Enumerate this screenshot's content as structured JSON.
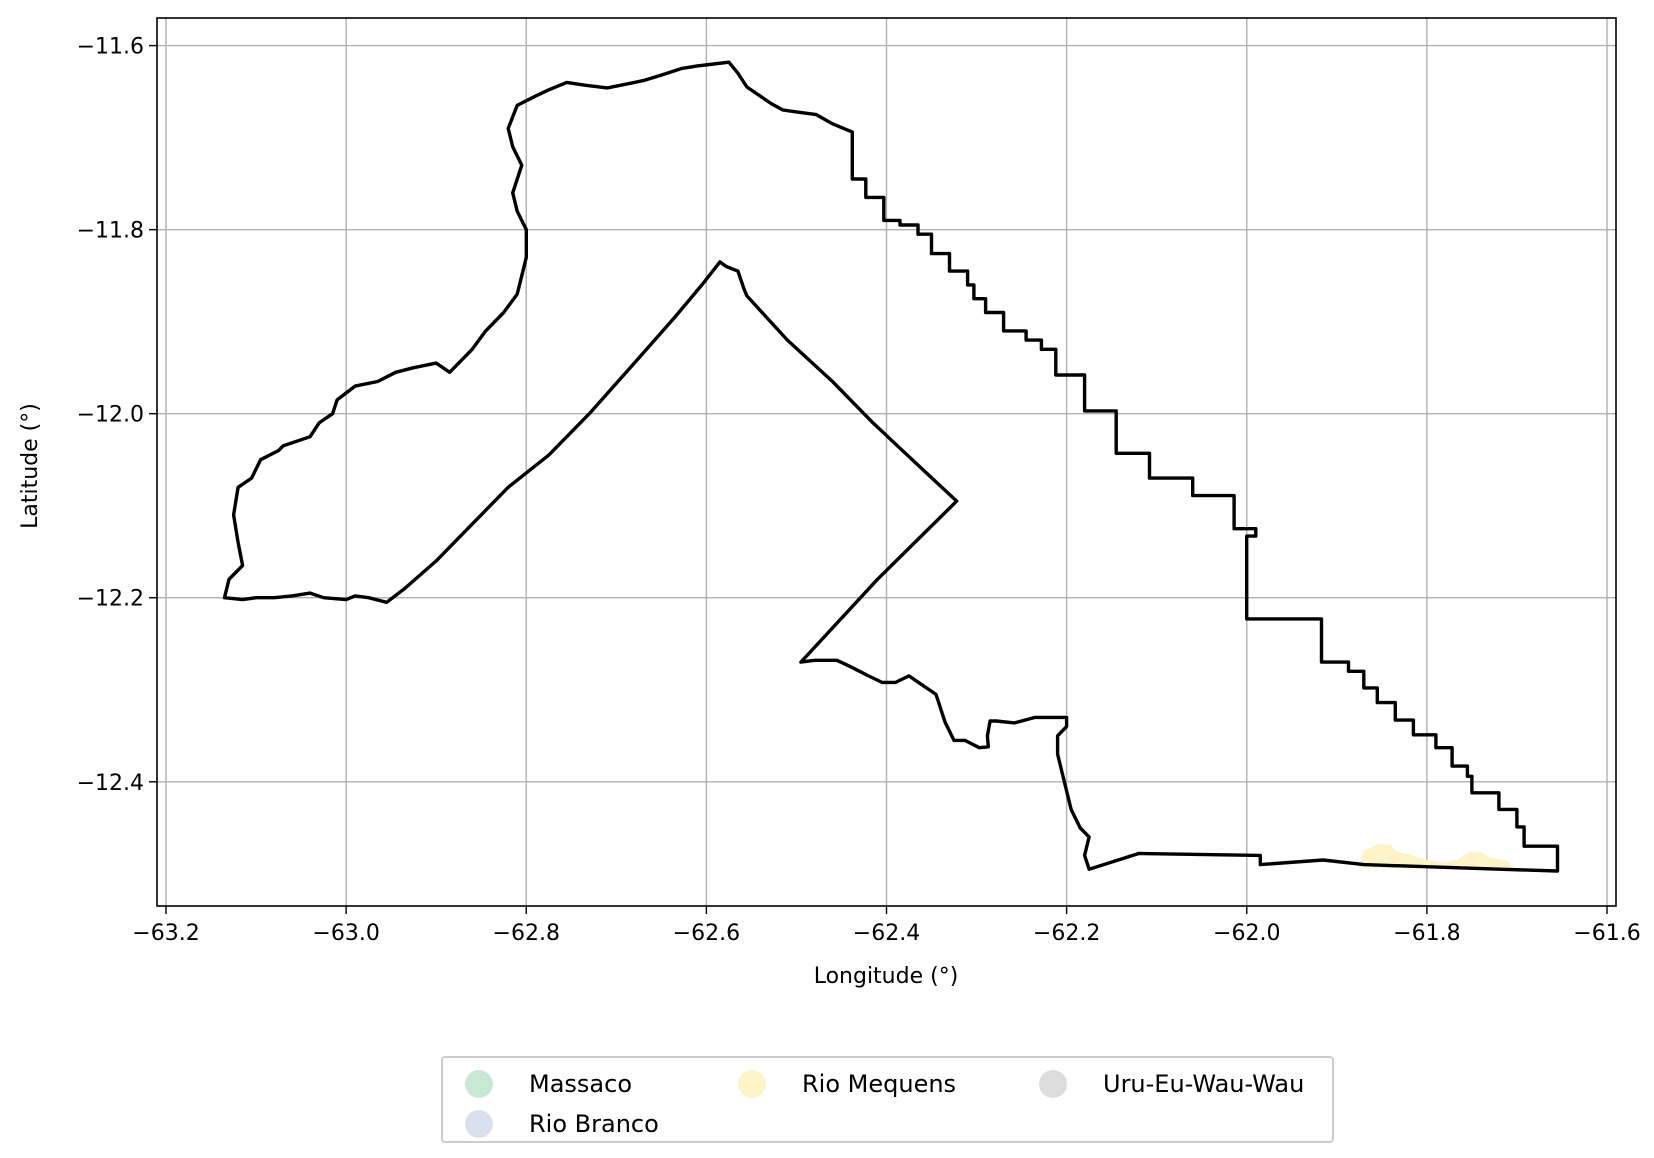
{
  "map": {
    "xlabel": "Longitude (°)",
    "ylabel": "Latitude (°)",
    "xlim": [
      -63.21,
      -61.59
    ],
    "ylim": [
      -12.535,
      -11.57
    ],
    "grid": true,
    "x_ticks": [
      {
        "value": -63.2,
        "label": "−63.2"
      },
      {
        "value": -63.0,
        "label": "−63.0"
      },
      {
        "value": -62.8,
        "label": "−62.8"
      },
      {
        "value": -62.6,
        "label": "−62.6"
      },
      {
        "value": -62.4,
        "label": "−62.4"
      },
      {
        "value": -62.2,
        "label": "−62.2"
      },
      {
        "value": -62.0,
        "label": "−62.0"
      },
      {
        "value": -61.8,
        "label": "−61.8"
      },
      {
        "value": -61.6,
        "label": "−61.6"
      }
    ],
    "y_ticks": [
      {
        "value": -11.6,
        "label": "−11.6"
      },
      {
        "value": -11.8,
        "label": "−11.8"
      },
      {
        "value": -12.0,
        "label": "−12.0"
      },
      {
        "value": -12.2,
        "label": "−12.2"
      },
      {
        "value": -12.4,
        "label": "−12.4"
      }
    ],
    "boundary_color": "#000000",
    "boundary": [
      [
        -63.135,
        -12.2
      ],
      [
        -63.13,
        -12.18
      ],
      [
        -63.115,
        -12.165
      ],
      [
        -63.12,
        -12.14
      ],
      [
        -63.125,
        -12.11
      ],
      [
        -63.12,
        -12.08
      ],
      [
        -63.105,
        -12.07
      ],
      [
        -63.095,
        -12.05
      ],
      [
        -63.075,
        -12.04
      ],
      [
        -63.07,
        -12.035
      ],
      [
        -63.04,
        -12.025
      ],
      [
        -63.03,
        -12.01
      ],
      [
        -63.015,
        -12.0
      ],
      [
        -63.01,
        -11.985
      ],
      [
        -62.99,
        -11.97
      ],
      [
        -62.965,
        -11.965
      ],
      [
        -62.945,
        -11.955
      ],
      [
        -62.925,
        -11.95
      ],
      [
        -62.9,
        -11.945
      ],
      [
        -62.885,
        -11.955
      ],
      [
        -62.875,
        -11.945
      ],
      [
        -62.86,
        -11.93
      ],
      [
        -62.845,
        -11.91
      ],
      [
        -62.825,
        -11.89
      ],
      [
        -62.81,
        -11.87
      ],
      [
        -62.805,
        -11.85
      ],
      [
        -62.8,
        -11.83
      ],
      [
        -62.8,
        -11.8
      ],
      [
        -62.81,
        -11.78
      ],
      [
        -62.815,
        -11.76
      ],
      [
        -62.805,
        -11.73
      ],
      [
        -62.815,
        -11.71
      ],
      [
        -62.82,
        -11.69
      ],
      [
        -62.81,
        -11.665
      ],
      [
        -62.79,
        -11.655
      ],
      [
        -62.775,
        -11.648
      ],
      [
        -62.755,
        -11.64
      ],
      [
        -62.735,
        -11.643
      ],
      [
        -62.71,
        -11.646
      ],
      [
        -62.69,
        -11.642
      ],
      [
        -62.67,
        -11.638
      ],
      [
        -62.65,
        -11.632
      ],
      [
        -62.628,
        -11.625
      ],
      [
        -62.61,
        -11.622
      ],
      [
        -62.592,
        -11.62
      ],
      [
        -62.575,
        -11.618
      ],
      [
        -62.565,
        -11.63
      ],
      [
        -62.555,
        -11.645
      ],
      [
        -62.54,
        -11.655
      ],
      [
        -62.528,
        -11.663
      ],
      [
        -62.515,
        -11.67
      ],
      [
        -62.5,
        -11.672
      ],
      [
        -62.478,
        -11.675
      ],
      [
        -62.46,
        -11.685
      ],
      [
        -62.438,
        -11.694
      ],
      [
        -62.438,
        -11.745
      ],
      [
        -62.423,
        -11.745
      ],
      [
        -62.423,
        -11.765
      ],
      [
        -62.403,
        -11.765
      ],
      [
        -62.403,
        -11.79
      ],
      [
        -62.385,
        -11.79
      ],
      [
        -62.385,
        -11.795
      ],
      [
        -62.365,
        -11.795
      ],
      [
        -62.365,
        -11.805
      ],
      [
        -62.35,
        -11.805
      ],
      [
        -62.35,
        -11.826
      ],
      [
        -62.33,
        -11.826
      ],
      [
        -62.33,
        -11.845
      ],
      [
        -62.31,
        -11.845
      ],
      [
        -62.31,
        -11.86
      ],
      [
        -62.303,
        -11.86
      ],
      [
        -62.303,
        -11.875
      ],
      [
        -62.29,
        -11.875
      ],
      [
        -62.29,
        -11.89
      ],
      [
        -62.27,
        -11.89
      ],
      [
        -62.27,
        -11.91
      ],
      [
        -62.245,
        -11.91
      ],
      [
        -62.245,
        -11.92
      ],
      [
        -62.228,
        -11.92
      ],
      [
        -62.228,
        -11.93
      ],
      [
        -62.212,
        -11.93
      ],
      [
        -62.212,
        -11.958
      ],
      [
        -62.18,
        -11.958
      ],
      [
        -62.18,
        -11.997
      ],
      [
        -62.145,
        -11.997
      ],
      [
        -62.145,
        -12.043
      ],
      [
        -62.108,
        -12.043
      ],
      [
        -62.108,
        -12.07
      ],
      [
        -62.06,
        -12.07
      ],
      [
        -62.06,
        -12.089
      ],
      [
        -62.014,
        -12.089
      ],
      [
        -62.014,
        -12.125
      ],
      [
        -61.99,
        -12.125
      ],
      [
        -61.99,
        -12.133
      ],
      [
        -62.0,
        -12.133
      ],
      [
        -62.0,
        -12.223
      ],
      [
        -61.917,
        -12.223
      ],
      [
        -61.917,
        -12.27
      ],
      [
        -61.887,
        -12.27
      ],
      [
        -61.887,
        -12.28
      ],
      [
        -61.87,
        -12.28
      ],
      [
        -61.87,
        -12.298
      ],
      [
        -61.855,
        -12.298
      ],
      [
        -61.855,
        -12.314
      ],
      [
        -61.835,
        -12.314
      ],
      [
        -61.835,
        -12.333
      ],
      [
        -61.815,
        -12.333
      ],
      [
        -61.815,
        -12.349
      ],
      [
        -61.79,
        -12.349
      ],
      [
        -61.79,
        -12.363
      ],
      [
        -61.772,
        -12.363
      ],
      [
        -61.772,
        -12.383
      ],
      [
        -61.755,
        -12.383
      ],
      [
        -61.755,
        -12.394
      ],
      [
        -61.75,
        -12.394
      ],
      [
        -61.75,
        -12.412
      ],
      [
        -61.72,
        -12.412
      ],
      [
        -61.72,
        -12.43
      ],
      [
        -61.7,
        -12.43
      ],
      [
        -61.7,
        -12.449
      ],
      [
        -61.692,
        -12.449
      ],
      [
        -61.692,
        -12.47
      ],
      [
        -61.655,
        -12.47
      ],
      [
        -61.655,
        -12.497
      ],
      [
        -61.72,
        -12.495
      ],
      [
        -61.87,
        -12.49
      ],
      [
        -61.915,
        -12.485
      ],
      [
        -61.985,
        -12.49
      ],
      [
        -61.985,
        -12.48
      ],
      [
        -62.12,
        -12.478
      ],
      [
        -62.175,
        -12.495
      ],
      [
        -62.18,
        -12.48
      ],
      [
        -62.175,
        -12.46
      ],
      [
        -62.185,
        -12.45
      ],
      [
        -62.195,
        -12.43
      ],
      [
        -62.2,
        -12.41
      ],
      [
        -62.205,
        -12.39
      ],
      [
        -62.21,
        -12.37
      ],
      [
        -62.21,
        -12.35
      ],
      [
        -62.2,
        -12.34
      ],
      [
        -62.2,
        -12.33
      ],
      [
        -62.215,
        -12.33
      ],
      [
        -62.235,
        -12.33
      ],
      [
        -62.258,
        -12.336
      ],
      [
        -62.278,
        -12.334
      ],
      [
        -62.285,
        -12.334
      ],
      [
        -62.288,
        -12.35
      ],
      [
        -62.287,
        -12.362
      ],
      [
        -62.297,
        -12.363
      ],
      [
        -62.313,
        -12.355
      ],
      [
        -62.325,
        -12.355
      ],
      [
        -62.335,
        -12.335
      ],
      [
        -62.345,
        -12.305
      ],
      [
        -62.36,
        -12.295
      ],
      [
        -62.375,
        -12.285
      ],
      [
        -62.39,
        -12.292
      ],
      [
        -62.405,
        -12.292
      ],
      [
        -62.42,
        -12.285
      ],
      [
        -62.44,
        -12.275
      ],
      [
        -62.455,
        -12.268
      ],
      [
        -62.48,
        -12.268
      ],
      [
        -62.495,
        -12.27
      ],
      [
        -62.41,
        -12.18
      ],
      [
        -62.322,
        -12.095
      ],
      [
        -62.355,
        -12.065
      ],
      [
        -62.415,
        -12.01
      ],
      [
        -62.46,
        -11.965
      ],
      [
        -62.51,
        -11.92
      ],
      [
        -62.555,
        -11.872
      ],
      [
        -62.558,
        -11.865
      ],
      [
        -62.565,
        -11.845
      ],
      [
        -62.578,
        -11.84
      ],
      [
        -62.585,
        -11.835
      ],
      [
        -62.605,
        -11.86
      ],
      [
        -62.635,
        -11.895
      ],
      [
        -62.68,
        -11.945
      ],
      [
        -62.73,
        -12.0
      ],
      [
        -62.775,
        -12.045
      ],
      [
        -62.82,
        -12.08
      ],
      [
        -62.86,
        -12.12
      ],
      [
        -62.9,
        -12.16
      ],
      [
        -62.935,
        -12.19
      ],
      [
        -62.955,
        -12.205
      ],
      [
        -62.975,
        -12.2
      ],
      [
        -62.99,
        -12.198
      ],
      [
        -63.0,
        -12.202
      ],
      [
        -63.025,
        -12.2
      ],
      [
        -63.04,
        -12.195
      ],
      [
        -63.06,
        -12.198
      ],
      [
        -63.08,
        -12.2
      ],
      [
        -63.1,
        -12.2
      ],
      [
        -63.115,
        -12.202
      ],
      [
        -63.135,
        -12.2
      ]
    ],
    "regions": [
      {
        "name": "Rio Mequens",
        "color": "#fcf3c7",
        "polygon": [
          [
            -61.875,
            -12.49
          ],
          [
            -61.87,
            -12.475
          ],
          [
            -61.855,
            -12.468
          ],
          [
            -61.84,
            -12.468
          ],
          [
            -61.835,
            -12.475
          ],
          [
            -61.815,
            -12.48
          ],
          [
            -61.8,
            -12.485
          ],
          [
            -61.78,
            -12.488
          ],
          [
            -61.765,
            -12.484
          ],
          [
            -61.752,
            -12.476
          ],
          [
            -61.74,
            -12.476
          ],
          [
            -61.73,
            -12.482
          ],
          [
            -61.71,
            -12.486
          ],
          [
            -61.705,
            -12.494
          ],
          [
            -61.875,
            -12.494
          ]
        ]
      }
    ]
  },
  "legend": [
    {
      "label": "Massaco",
      "color": "#c8e8d6"
    },
    {
      "label": "Rio Mequens",
      "color": "#fcf3c7"
    },
    {
      "label": "Uru-Eu-Wau-Wau",
      "color": "#dcdcdc"
    },
    {
      "label": "Rio Branco",
      "color": "#dbe0ee"
    }
  ]
}
